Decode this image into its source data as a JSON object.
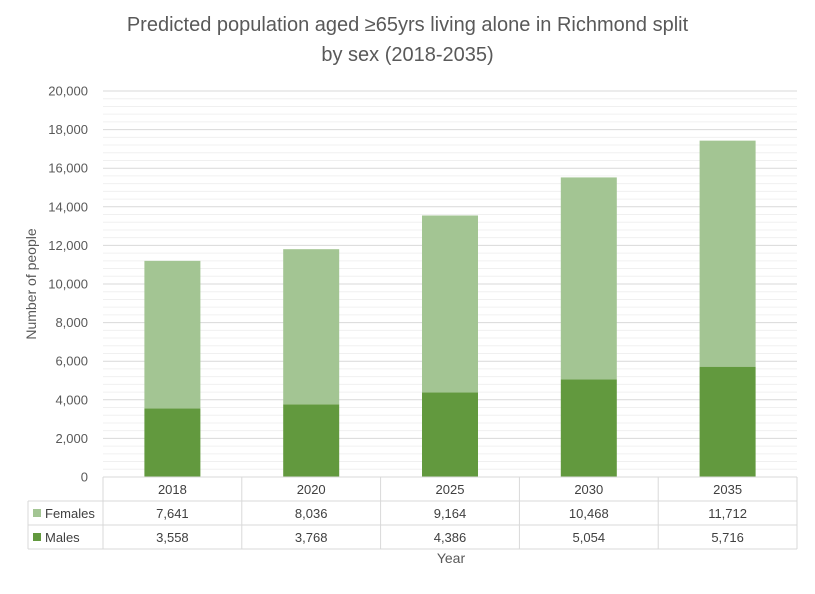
{
  "chart_data": {
    "type": "bar",
    "stacked": true,
    "title": "Predicted population aged ≥65yrs living alone in Richmond split by sex (2018-2035)",
    "title_lines": [
      "Predicted population aged ≥65yrs living alone in Richmond split",
      "by sex (2018-2035)"
    ],
    "xlabel": "Year",
    "ylabel": "Number of people",
    "categories": [
      "2018",
      "2020",
      "2025",
      "2030",
      "2035"
    ],
    "series": [
      {
        "name": "Males",
        "values": [
          3558,
          3768,
          4386,
          5054,
          5716
        ],
        "color": "#62993e"
      },
      {
        "name": "Females",
        "values": [
          7641,
          8036,
          9164,
          10468,
          11712
        ],
        "color": "#a3c593"
      }
    ],
    "table_rows": [
      {
        "name": "Females",
        "values": [
          "7,641",
          "8,036",
          "9,164",
          "10,468",
          "11,712"
        ],
        "color": "#a3c593"
      },
      {
        "name": "Males",
        "values": [
          "3,558",
          "3,768",
          "4,386",
          "5,054",
          "5,716"
        ],
        "color": "#62993e"
      }
    ],
    "ylim": [
      0,
      20000
    ],
    "yticks": [
      0,
      2000,
      4000,
      6000,
      8000,
      10000,
      12000,
      14000,
      16000,
      18000,
      20000
    ],
    "ytick_labels": [
      "0",
      "2,000",
      "4,000",
      "6,000",
      "8,000",
      "10,000",
      "12,000",
      "14,000",
      "16,000",
      "18,000",
      "20,000"
    ],
    "grid": true,
    "legend": "data-table"
  }
}
